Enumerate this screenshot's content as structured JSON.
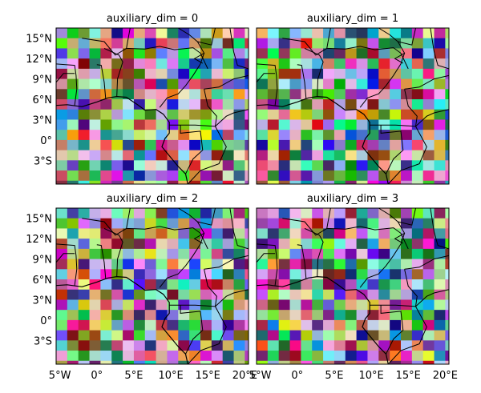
{
  "chart_data": [
    {
      "type": "heatmap",
      "title": "auxiliary_dim = 0",
      "xlabel": "",
      "ylabel": "",
      "x_tick_labels": [],
      "y_tick_labels": [
        "15°N",
        "12°N",
        "9°N",
        "6°N",
        "3°N",
        "0°",
        "3°S"
      ],
      "x_range": [
        -5.5,
        20.5
      ],
      "y_range": [
        -6.5,
        16.5
      ],
      "x_units": "degrees longitude",
      "y_units": "degrees latitude",
      "y_tick_values": [
        15,
        12,
        9,
        6,
        3,
        0,
        -3
      ],
      "grid": false,
      "cell_colors": "random"
    },
    {
      "type": "heatmap",
      "title": "auxiliary_dim = 1",
      "xlabel": "",
      "ylabel": "",
      "x_tick_labels": [],
      "y_tick_labels": [],
      "x_range": [
        -5.5,
        20.5
      ],
      "y_range": [
        -6.5,
        16.5
      ],
      "grid": false,
      "cell_colors": "random"
    },
    {
      "type": "heatmap",
      "title": "auxiliary_dim = 2",
      "xlabel": "",
      "ylabel": "",
      "x_tick_labels": [
        "5°W",
        "0°",
        "5°E",
        "10°E",
        "15°E",
        "20°E"
      ],
      "y_tick_labels": [
        "15°N",
        "12°N",
        "9°N",
        "6°N",
        "3°N",
        "0°",
        "3°S"
      ],
      "x_tick_values": [
        -5,
        0,
        5,
        10,
        15,
        20
      ],
      "y_tick_values": [
        15,
        12,
        9,
        6,
        3,
        0,
        -3
      ],
      "x_range": [
        -5.5,
        20.5
      ],
      "y_range": [
        -6.5,
        16.5
      ],
      "grid": false,
      "cell_colors": "random"
    },
    {
      "type": "heatmap",
      "title": "auxiliary_dim = 3",
      "xlabel": "",
      "ylabel": "",
      "x_tick_labels": [
        "5°W",
        "0°",
        "5°E",
        "10°E",
        "15°E",
        "20°E"
      ],
      "y_tick_labels": [],
      "x_tick_values": [
        -5,
        0,
        5,
        10,
        15,
        20
      ],
      "x_range": [
        -5.5,
        20.5
      ],
      "y_range": [
        -6.5,
        16.5
      ],
      "grid": false,
      "cell_colors": "random"
    }
  ]
}
